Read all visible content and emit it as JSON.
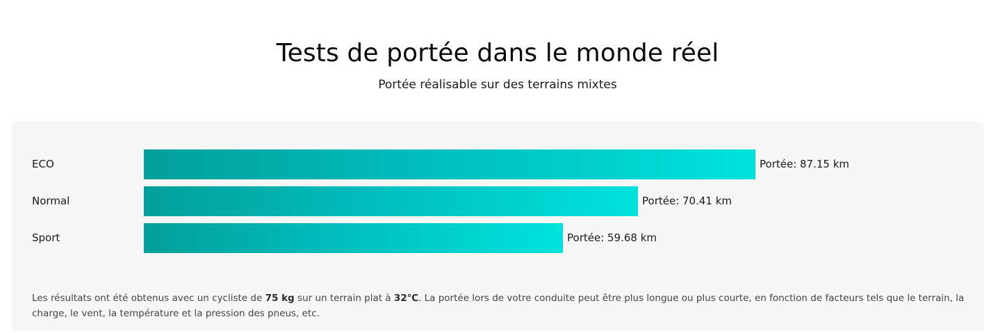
{
  "header": {
    "title": "Tests de portée dans le monde réel",
    "subtitle": "Portée réalisable sur des terrains mixtes"
  },
  "chart_data": {
    "type": "bar",
    "orientation": "horizontal",
    "categories": [
      "ECO",
      "Normal",
      "Sport"
    ],
    "values": [
      87.15,
      70.41,
      59.68
    ],
    "value_labels": [
      "Portée: 87.15 km",
      "Portée: 70.41 km",
      "Portée: 59.68 km"
    ],
    "unit": "km",
    "xlim": [
      0,
      100
    ],
    "grid": false,
    "bar_colors": [
      "#039f9a",
      "#00e2dd"
    ]
  },
  "footnote": {
    "part1": "Les résultats ont été obtenus avec un cycliste de ",
    "weight": "75 kg",
    "part2": " sur un terrain plat à ",
    "temperature": "32℃",
    "part3": ". La portée lors de votre conduite peut être plus longue ou plus courte, en fonction de facteurs tels que le terrain, la charge, le vent, la température et la pression des pneus, etc."
  },
  "colors": {
    "panel_background": "#f6f6f6",
    "bar_start": "#039f9a",
    "bar_end": "#00e2dd"
  }
}
